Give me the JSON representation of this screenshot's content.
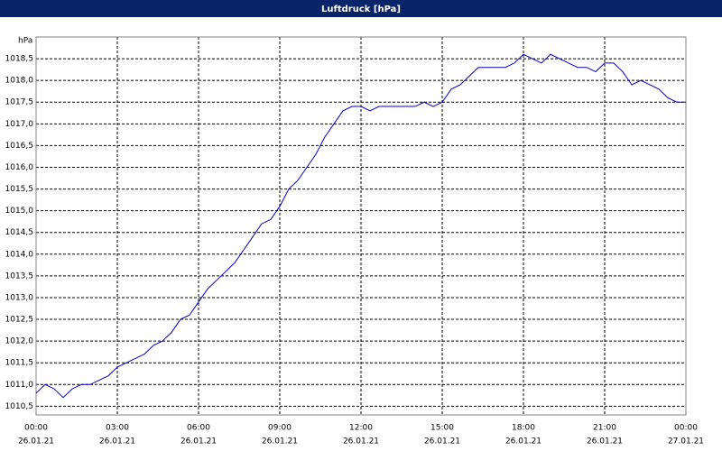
{
  "chart_data": {
    "type": "line",
    "title": "Luftdruck [hPa]",
    "ylabel": "hPa",
    "xlim": [
      0,
      1440
    ],
    "ylim": [
      1010.3,
      1019.0
    ],
    "grid": true,
    "xticks": [
      {
        "value": 0,
        "label": "00:00",
        "date": "26.01.21"
      },
      {
        "value": 180,
        "label": "03:00",
        "date": "26.01.21"
      },
      {
        "value": 360,
        "label": "06:00",
        "date": "26.01.21"
      },
      {
        "value": 540,
        "label": "09:00",
        "date": "26.01.21"
      },
      {
        "value": 720,
        "label": "12:00",
        "date": "26.01.21"
      },
      {
        "value": 900,
        "label": "15:00",
        "date": "26.01.21"
      },
      {
        "value": 1080,
        "label": "18:00",
        "date": "26.01.21"
      },
      {
        "value": 1260,
        "label": "21:00",
        "date": "26.01.21"
      },
      {
        "value": 1440,
        "label": "00:00",
        "date": "27.01.21"
      }
    ],
    "yticks": [
      {
        "value": 1010.5,
        "label": "1010,5"
      },
      {
        "value": 1011,
        "label": "1011,0"
      },
      {
        "value": 1011.5,
        "label": "1011,5"
      },
      {
        "value": 1012,
        "label": "1012,0"
      },
      {
        "value": 1012.5,
        "label": "1012,5"
      },
      {
        "value": 1013,
        "label": "1013,0"
      },
      {
        "value": 1013.5,
        "label": "1013,5"
      },
      {
        "value": 1014,
        "label": "1014,0"
      },
      {
        "value": 1014.5,
        "label": "1014,5"
      },
      {
        "value": 1015,
        "label": "1015,0"
      },
      {
        "value": 1015.5,
        "label": "1015,5"
      },
      {
        "value": 1016,
        "label": "1016,0"
      },
      {
        "value": 1016.5,
        "label": "1016,5"
      },
      {
        "value": 1017,
        "label": "1017,0"
      },
      {
        "value": 1017.5,
        "label": "1017,5"
      },
      {
        "value": 1018,
        "label": "1018,0"
      },
      {
        "value": 1018.5,
        "label": "1018,5"
      }
    ],
    "x": [
      0,
      20,
      40,
      60,
      80,
      100,
      120,
      140,
      160,
      180,
      200,
      220,
      240,
      260,
      280,
      300,
      320,
      340,
      360,
      380,
      400,
      420,
      440,
      460,
      480,
      500,
      520,
      540,
      560,
      580,
      600,
      620,
      640,
      660,
      680,
      700,
      720,
      740,
      760,
      780,
      800,
      820,
      840,
      860,
      880,
      900,
      920,
      940,
      960,
      980,
      1000,
      1020,
      1040,
      1060,
      1080,
      1100,
      1120,
      1140,
      1160,
      1180,
      1200,
      1220,
      1240,
      1260,
      1280,
      1300,
      1320,
      1340,
      1360,
      1380,
      1400,
      1420,
      1440
    ],
    "series": [
      {
        "color": "#0000cc",
        "values": [
          1010.8,
          1011.0,
          1010.9,
          1010.7,
          1010.9,
          1011.0,
          1011.0,
          1011.1,
          1011.2,
          1011.4,
          1011.5,
          1011.6,
          1011.7,
          1011.9,
          1012.0,
          1012.2,
          1012.5,
          1012.6,
          1012.9,
          1013.2,
          1013.4,
          1013.6,
          1013.8,
          1014.1,
          1014.4,
          1014.7,
          1014.8,
          1015.1,
          1015.5,
          1015.7,
          1016.0,
          1016.3,
          1016.7,
          1017.0,
          1017.3,
          1017.4,
          1017.4,
          1017.3,
          1017.4,
          1017.4,
          1017.4,
          1017.4,
          1017.4,
          1017.5,
          1017.4,
          1017.5,
          1017.8,
          1017.9,
          1018.1,
          1018.3,
          1018.3,
          1018.3,
          1018.3,
          1018.4,
          1018.6,
          1018.5,
          1018.4,
          1018.6,
          1018.5,
          1018.4,
          1018.3,
          1018.3,
          1018.2,
          1018.4,
          1018.4,
          1018.2,
          1017.9,
          1018.0,
          1017.9,
          1017.8,
          1017.6,
          1017.5,
          1017.5
        ]
      }
    ]
  }
}
